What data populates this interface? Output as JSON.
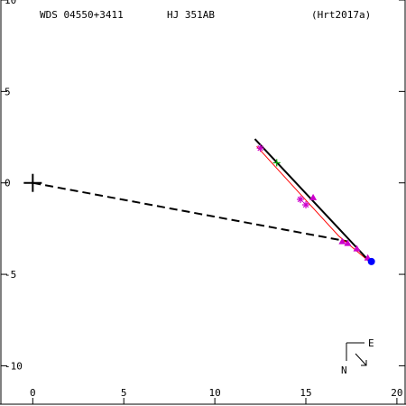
{
  "header": {
    "wds": "WDS 04550+3411",
    "name": "HJ  351AB",
    "ref": "(Hrt2017a)"
  },
  "compass": {
    "east": "E",
    "north": "N"
  },
  "chart_data": {
    "type": "scatter",
    "x_ticks": [
      "0",
      "5",
      "10",
      "15",
      "20"
    ],
    "y_ticks": [
      "10",
      "5",
      "0",
      "-5",
      "-10"
    ],
    "xlim": [
      -1.8,
      20.5
    ],
    "ylim": [
      -12.2,
      10
    ],
    "primary_marker": {
      "x": 0,
      "y": 0
    },
    "orbit_line": {
      "from": [
        12.2,
        2.4
      ],
      "to": [
        18.6,
        -4.4
      ]
    },
    "fit_curve": [
      [
        12.3,
        2.0
      ],
      [
        14.5,
        -0.4
      ],
      [
        16.8,
        -2.9
      ],
      [
        18.6,
        -4.4
      ]
    ],
    "dashed_line": {
      "from": [
        0,
        0
      ],
      "to": [
        17.3,
        -3.2
      ]
    },
    "measurements": {
      "asterisk": [
        [
          12.5,
          1.9
        ],
        [
          14.7,
          -0.9
        ],
        [
          15.0,
          -1.2
        ]
      ],
      "triangle": [
        [
          15.4,
          -0.8
        ],
        [
          17.0,
          -3.2
        ],
        [
          17.3,
          -3.3
        ],
        [
          17.8,
          -3.6
        ],
        [
          18.4,
          -4.1
        ]
      ],
      "plus_green": [
        [
          13.4,
          1.1
        ]
      ]
    },
    "current_position": {
      "x": 18.6,
      "y": -4.3
    },
    "colors": {
      "axes": "#000000",
      "orbit": "#000000",
      "fit": "#ff0000",
      "measurement": "#cc00cc",
      "plus": "#009900",
      "current": "#0000ff"
    }
  }
}
